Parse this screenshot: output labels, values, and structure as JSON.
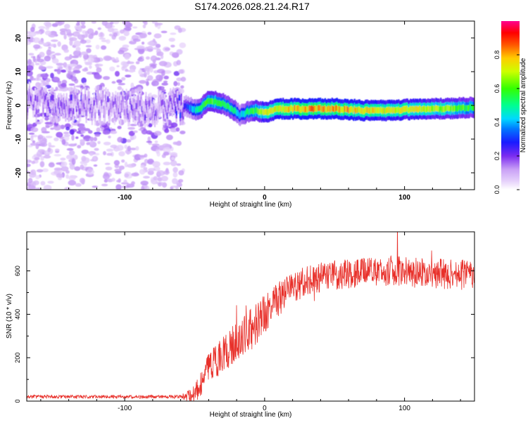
{
  "title": "S174.2026.028.21.24.R17",
  "colors": {
    "snr_line": "#e8302a",
    "ridge_low": "#6b1cf0",
    "axis": "#000000"
  },
  "chart_data": [
    {
      "type": "heatmap",
      "name": "spectrogram",
      "xlabel": "Height of straight line (km)",
      "ylabel": "Frequency (Hz)",
      "xlim": [
        -170,
        150
      ],
      "ylim": [
        -25,
        25
      ],
      "xticks": [
        -100,
        0,
        100
      ],
      "yticks": [
        -20,
        -10,
        0,
        10,
        20
      ],
      "colorbar": {
        "label": "Normalized spectral amplitude",
        "range": [
          0,
          1
        ],
        "ticks": [
          0.0,
          0.2,
          0.4,
          0.6,
          0.8
        ]
      },
      "ridge": {
        "description_x": [
          -170,
          -150,
          -120,
          -90,
          -70,
          -58,
          -48,
          -40,
          -30,
          -22,
          -18,
          -10,
          0,
          10,
          30,
          50,
          70,
          90,
          110,
          130,
          150
        ],
        "frequency_hz": [
          1.5,
          0.5,
          0.0,
          -1.0,
          -0.5,
          0.0,
          -1.5,
          1.5,
          0.5,
          -1.5,
          -3.0,
          -1.5,
          -2.0,
          -1.0,
          -1.0,
          -1.0,
          -1.5,
          -1.5,
          -1.0,
          -1.0,
          -0.5
        ],
        "peak_amplitude": [
          0.15,
          0.18,
          0.17,
          0.16,
          0.17,
          0.25,
          0.5,
          0.6,
          0.55,
          0.5,
          0.4,
          0.55,
          0.7,
          0.75,
          0.8,
          0.8,
          0.75,
          0.72,
          0.7,
          0.65,
          0.55
        ]
      }
    },
    {
      "type": "line",
      "name": "snr",
      "xlabel": "Height of straight line (km)",
      "ylabel": "SNR (10 * v/v)",
      "xlim": [
        -170,
        150
      ],
      "ylim": [
        0,
        780
      ],
      "xticks": [
        -100,
        0,
        100
      ],
      "yticks": [
        0,
        200,
        400,
        600
      ],
      "trend": {
        "x": [
          -170,
          -60,
          -50,
          -45,
          -40,
          -30,
          -20,
          -10,
          0,
          10,
          20,
          30,
          50,
          70,
          90,
          110,
          130,
          150
        ],
        "y": [
          20,
          20,
          30,
          90,
          160,
          210,
          270,
          330,
          400,
          470,
          520,
          560,
          580,
          590,
          600,
          590,
          585,
          580
        ]
      },
      "noise_amplitude": {
        "x": [
          -170,
          -60,
          -45,
          -30,
          -10,
          10,
          30,
          150
        ],
        "y": [
          8,
          8,
          60,
          90,
          100,
          80,
          70,
          70
        ]
      }
    }
  ]
}
